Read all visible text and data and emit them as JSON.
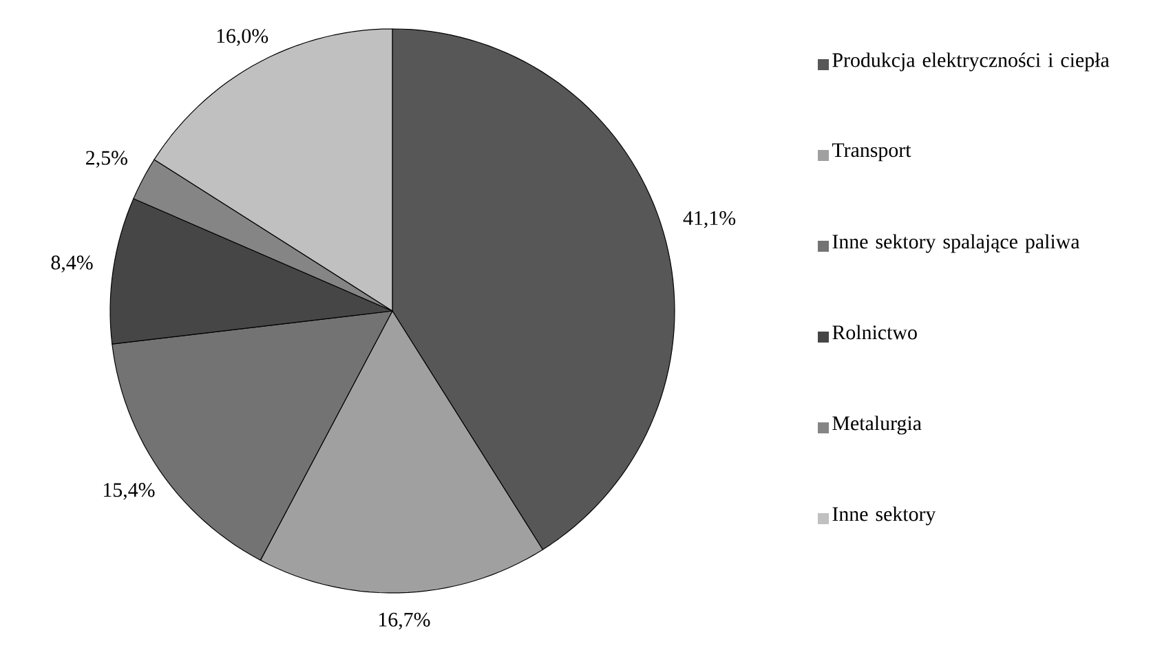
{
  "chart_data": {
    "type": "pie",
    "categories": [
      "Produkcja elektryczności i ciepła",
      "Transport",
      "Inne sektory spalające paliwa",
      "Rolnictwo",
      "Metalurgia",
      "Inne sektory"
    ],
    "values": [
      41.1,
      16.7,
      15.4,
      8.4,
      2.5,
      16.0
    ],
    "value_labels": [
      "41,1%",
      "16,7%",
      "15,4%",
      "8,4%",
      "2,5%",
      "16,0%"
    ],
    "colors": [
      "#575757",
      "#a0a0a0",
      "#737373",
      "#464646",
      "#858585",
      "#c0c0c0"
    ],
    "legend": "right"
  }
}
